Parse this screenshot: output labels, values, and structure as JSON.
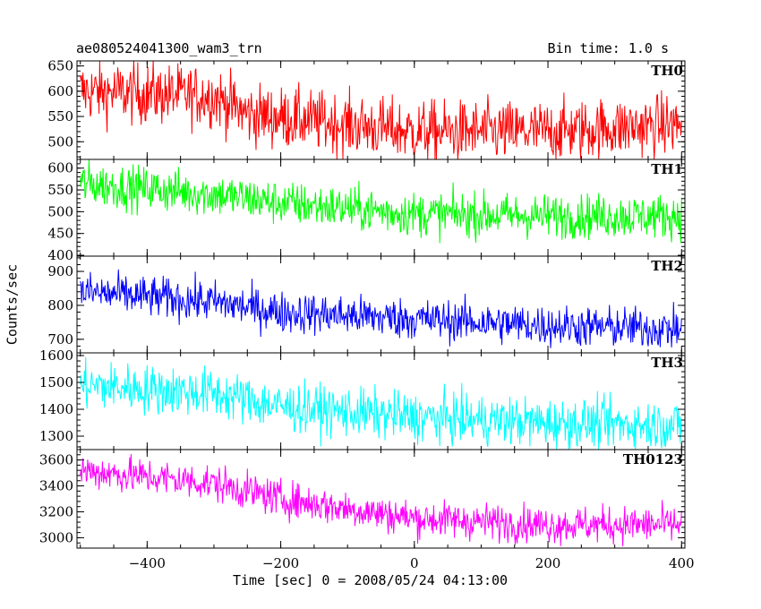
{
  "header": {
    "title": "ae080524041300_wam3_trn",
    "bin_time": "Bin time: 1.0 s"
  },
  "axes": {
    "xlabel": "Time [sec] 0 = 2008/05/24 04:13:00",
    "ylabel": "Counts/sec"
  },
  "chart_data": {
    "type": "line",
    "title": "ae080524041300_wam3_trn",
    "xlabel": "Time [sec] 0 = 2008/05/24 04:13:00",
    "ylabel": "Counts/sec",
    "xlim": [
      -505,
      405
    ],
    "x_ticks": [
      -400,
      -200,
      0,
      200,
      400
    ],
    "x_range_data": [
      -500,
      400
    ],
    "bin_size": 1.0,
    "grid": false,
    "series": [
      {
        "name": "TH0",
        "color": "#ff0000",
        "ylim": [
          465,
          660
        ],
        "y_ticks": [
          500,
          550,
          600,
          650
        ],
        "trend": [
          [
            -500,
            600
          ],
          [
            -300,
            590
          ],
          [
            -250,
            555
          ],
          [
            0,
            520
          ],
          [
            200,
            520
          ],
          [
            400,
            535
          ]
        ],
        "noise": 30
      },
      {
        "name": "TH1",
        "color": "#00ff00",
        "ylim": [
          398,
          620
        ],
        "y_ticks": [
          400,
          450,
          500,
          550,
          600
        ],
        "trend": [
          [
            -500,
            565
          ],
          [
            -300,
            540
          ],
          [
            -200,
            520
          ],
          [
            0,
            495
          ],
          [
            200,
            490
          ],
          [
            400,
            490
          ]
        ],
        "noise": 25
      },
      {
        "name": "TH2",
        "color": "#0000ff",
        "ylim": [
          660,
          945
        ],
        "y_ticks": [
          700,
          800,
          900
        ],
        "trend": [
          [
            -500,
            840
          ],
          [
            -300,
            810
          ],
          [
            -200,
            780
          ],
          [
            0,
            760
          ],
          [
            200,
            740
          ],
          [
            400,
            730
          ]
        ],
        "noise": 30
      },
      {
        "name": "TH3",
        "color": "#00ffff",
        "ylim": [
          1250,
          1610
        ],
        "y_ticks": [
          1300,
          1400,
          1500,
          1600
        ],
        "trend": [
          [
            -500,
            1490
          ],
          [
            -300,
            1460
          ],
          [
            -200,
            1410
          ],
          [
            0,
            1370
          ],
          [
            200,
            1350
          ],
          [
            400,
            1340
          ]
        ],
        "noise": 45
      },
      {
        "name": "TH0123",
        "color": "#ff00ff",
        "ylim": [
          2920,
          3680
        ],
        "y_ticks": [
          3000,
          3200,
          3400,
          3600
        ],
        "trend": [
          [
            -500,
            3520
          ],
          [
            -300,
            3420
          ],
          [
            -200,
            3300
          ],
          [
            0,
            3150
          ],
          [
            200,
            3100
          ],
          [
            400,
            3100
          ]
        ],
        "noise": 70
      }
    ]
  }
}
